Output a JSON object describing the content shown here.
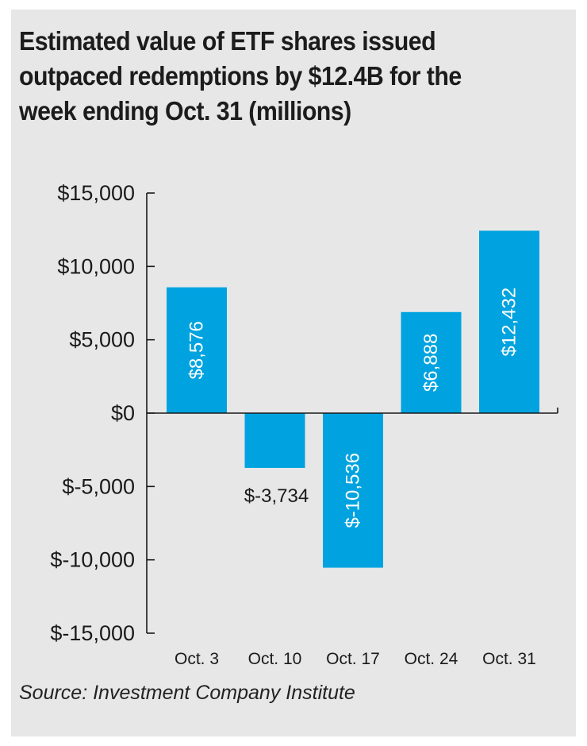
{
  "chart_data": {
    "type": "bar",
    "title_lines": [
      "Estimated value of ETF shares issued",
      "outpaced redemptions by $12.4B for the",
      "week ending Oct. 31 (millions)"
    ],
    "categories": [
      "Oct. 3",
      "Oct. 10",
      "Oct. 17",
      "Oct. 24",
      "Oct. 31"
    ],
    "values": [
      8576,
      -3734,
      -10536,
      6888,
      12432
    ],
    "data_labels": [
      "$8,576",
      "$-3,734",
      "$-10,536",
      "$6,888",
      "$12,432"
    ],
    "y_ticks": [
      15000,
      10000,
      5000,
      0,
      -5000,
      -10000,
      -15000
    ],
    "y_tick_labels": [
      "$15,000",
      "$10,000",
      "$5,000",
      "$0",
      "$-5,000",
      "$-10,000",
      "$-15,000"
    ],
    "ylim": [
      -15000,
      15000
    ],
    "xlabel": "",
    "ylabel": "",
    "grid": false,
    "bar_color": "#00a3e0",
    "source": "Source: Investment Company Institute"
  }
}
